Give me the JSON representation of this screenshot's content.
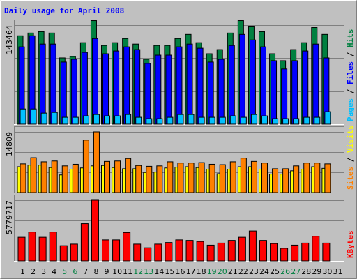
{
  "chart_data": {
    "type": "bar",
    "title": "Daily usage for April 2008",
    "categories": [
      "1",
      "2",
      "3",
      "4",
      "5",
      "6",
      "7",
      "8",
      "9",
      "10",
      "11",
      "12",
      "13",
      "14",
      "15",
      "16",
      "17",
      "18",
      "19",
      "20",
      "21",
      "22",
      "23",
      "24",
      "25",
      "26",
      "27",
      "28",
      "29",
      "30",
      "31"
    ],
    "weekend_categories": [
      "5",
      "6",
      "12",
      "13",
      "19",
      "20",
      "26",
      "27"
    ],
    "panels": [
      {
        "name": "hits-files-pages",
        "ymax_label": "143464",
        "ymax": 143464,
        "axis_label_parts": [
          {
            "text": "Pages",
            "color": "#00c0ff"
          },
          {
            "text": " / ",
            "color": "#000000"
          },
          {
            "text": "Files",
            "color": "#0000ff"
          },
          {
            "text": " / ",
            "color": "#000000"
          },
          {
            "text": "Hits",
            "color": "#008040"
          }
        ],
        "series": [
          {
            "name": "Hits",
            "color": "#008040",
            "values": [
              128000,
              132000,
              134000,
              132000,
              96000,
              98000,
              118000,
              150000,
              114000,
              118000,
              124000,
              116000,
              94000,
              114000,
              114000,
              124000,
              130000,
              118000,
              102000,
              108000,
              132000,
              150000,
              142000,
              134000,
              102000,
              92000,
              108000,
              118000,
              140000,
              130000,
              0
            ]
          },
          {
            "name": "Files",
            "color": "#0000ff",
            "values": [
              112000,
              128000,
              116000,
              116000,
              90000,
              94000,
              104000,
              124000,
              102000,
              106000,
              112000,
              108000,
              88000,
              100000,
              100000,
              112000,
              116000,
              110000,
              90000,
              94000,
              114000,
              130000,
              122000,
              112000,
              92000,
              80000,
              92000,
              106000,
              116000,
              96000,
              0
            ]
          },
          {
            "name": "Pages",
            "color": "#00c0ff",
            "values": [
              22000,
              22000,
              16000,
              17000,
              10000,
              10000,
              12000,
              14000,
              12000,
              12000,
              14000,
              10000,
              8000,
              8000,
              10000,
              14000,
              14000,
              10000,
              10000,
              10000,
              12000,
              10000,
              14000,
              12000,
              8000,
              8000,
              8000,
              10000,
              10000,
              18000,
              0
            ]
          }
        ]
      },
      {
        "name": "visits-sites",
        "ymax_label": "14809",
        "ymax": 14809,
        "axis_label_parts": [
          {
            "text": "Sites",
            "color": "#ff8000"
          },
          {
            "text": " / ",
            "color": "#000000"
          },
          {
            "text": "Visits",
            "color": "#ffff00"
          }
        ],
        "series": [
          {
            "name": "Visits",
            "color": "#ffff00",
            "values": [
              6300,
              6700,
              6700,
              6100,
              4300,
              5700,
              6000,
              6500,
              6600,
              6100,
              5800,
              5800,
              4900,
              5000,
              6000,
              6200,
              6300,
              6100,
              5700,
              4600,
              5700,
              6300,
              6300,
              5700,
              4500,
              4500,
              5300,
              5700,
              6300,
              5900,
              0
            ]
          },
          {
            "name": "Sites",
            "color": "#ff8000",
            "values": [
              7000,
              8500,
              7500,
              7700,
              6500,
              6900,
              12800,
              14809,
              7600,
              7700,
              8300,
              6600,
              6400,
              6500,
              7500,
              7200,
              7200,
              7300,
              6900,
              6800,
              7500,
              8400,
              7600,
              7200,
              5800,
              5800,
              6500,
              7200,
              7200,
              7000,
              0
            ]
          }
        ]
      },
      {
        "name": "kbytes",
        "ymax_label": "5779717",
        "ymax": 5779717,
        "axis_label_parts": [
          {
            "text": "KBytes",
            "color": "#ff0000"
          }
        ],
        "series": [
          {
            "name": "KBytes",
            "color": "#ff0000",
            "values": [
              2250000,
              2750000,
              2250000,
              2750000,
              1450000,
              1600000,
              3550000,
              5779717,
              2000000,
              2000000,
              2700000,
              1600000,
              1250000,
              1600000,
              1750000,
              2000000,
              1950000,
              1850000,
              1500000,
              1700000,
              1950000,
              2250000,
              2850000,
              1950000,
              1650000,
              1200000,
              1500000,
              1700000,
              2350000,
              1700000,
              0
            ]
          }
        ]
      }
    ],
    "grid": "horizontal"
  }
}
